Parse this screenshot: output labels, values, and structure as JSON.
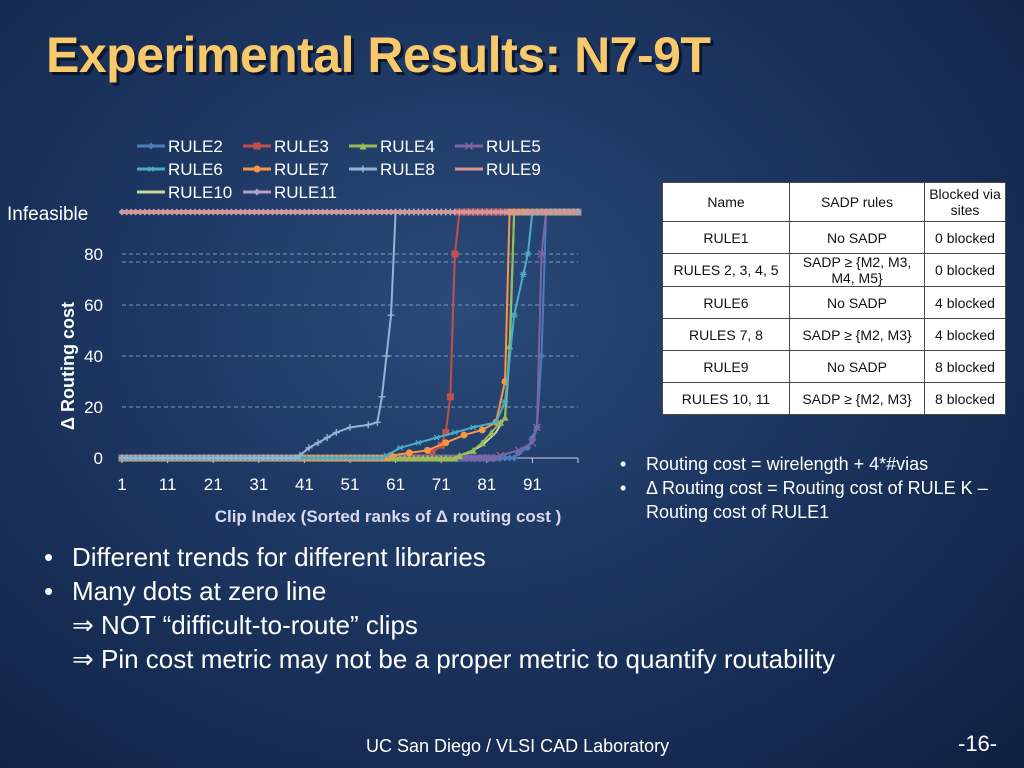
{
  "title": "Experimental Results: N7-9T",
  "chart_data": {
    "type": "line",
    "xlabel": "Clip Index (Sorted ranks of Δ routing cost )",
    "ylabel": "Δ Routing cost",
    "x_ticks": [
      "1",
      "11",
      "21",
      "31",
      "41",
      "51",
      "61",
      "71",
      "81",
      "91"
    ],
    "y_ticks": [
      "0",
      "20",
      "40",
      "60",
      "80"
    ],
    "infeasible_label": "Infeasible",
    "xlim": [
      1,
      101
    ],
    "ylim": [
      0,
      80
    ],
    "x_count": 101,
    "series": [
      {
        "name": "RULE2",
        "color": "#4a7ebb",
        "marker": "diamond",
        "jump_at": 94,
        "tail": [
          [
            88,
            2
          ],
          [
            90,
            4
          ],
          [
            91,
            8
          ],
          [
            92,
            12
          ],
          [
            93,
            40
          ]
        ]
      },
      {
        "name": "RULE3",
        "color": "#c0504d",
        "marker": "square",
        "jump_at": 75,
        "tail": [
          [
            69,
            2
          ],
          [
            71,
            5
          ],
          [
            72,
            10
          ],
          [
            73,
            24
          ],
          [
            74,
            80
          ]
        ]
      },
      {
        "name": "RULE4",
        "color": "#9bbb59",
        "marker": "triangle",
        "jump_at": 87,
        "tail": [
          [
            75,
            1
          ],
          [
            78,
            3
          ],
          [
            80,
            6
          ],
          [
            82,
            10
          ],
          [
            84,
            14
          ],
          [
            85,
            16
          ],
          [
            86,
            44
          ]
        ]
      },
      {
        "name": "RULE5",
        "color": "#8064a2",
        "marker": "x",
        "jump_at": 94,
        "tail": [
          [
            84,
            1
          ],
          [
            88,
            3
          ],
          [
            91,
            6
          ],
          [
            92,
            12
          ],
          [
            93,
            80
          ]
        ]
      },
      {
        "name": "RULE6",
        "color": "#4bacc6",
        "marker": "asterisk",
        "jump_at": 91,
        "tail": [
          [
            59,
            1
          ],
          [
            62,
            4
          ],
          [
            66,
            6
          ],
          [
            70,
            8
          ],
          [
            74,
            10
          ],
          [
            78,
            12
          ],
          [
            83,
            14
          ],
          [
            85,
            22
          ],
          [
            87,
            56
          ],
          [
            89,
            72
          ],
          [
            90,
            80
          ]
        ]
      },
      {
        "name": "RULE7",
        "color": "#f79646",
        "marker": "circle",
        "jump_at": 86,
        "tail": [
          [
            60,
            1
          ],
          [
            64,
            2
          ],
          [
            68,
            3
          ],
          [
            72,
            6
          ],
          [
            76,
            9
          ],
          [
            80,
            11
          ],
          [
            83,
            14
          ],
          [
            85,
            30
          ]
        ]
      },
      {
        "name": "RULE8",
        "color": "#95b3d7",
        "marker": "plus",
        "jump_at": 61,
        "tail": [
          [
            40,
            1
          ],
          [
            42,
            4
          ],
          [
            44,
            6
          ],
          [
            46,
            8
          ],
          [
            48,
            10
          ],
          [
            51,
            12
          ],
          [
            55,
            13
          ],
          [
            57,
            14
          ],
          [
            58,
            24
          ],
          [
            59,
            40
          ],
          [
            60,
            56
          ]
        ]
      },
      {
        "name": "RULE9",
        "color": "#d99694",
        "marker": "none",
        "jump_at": 1,
        "tail": []
      },
      {
        "name": "RULE10",
        "color": "#c3d69b",
        "marker": "none",
        "jump_at": 87,
        "tail": [
          [
            76,
            1
          ],
          [
            80,
            5
          ],
          [
            83,
            10
          ],
          [
            85,
            16
          ],
          [
            86,
            40
          ]
        ]
      },
      {
        "name": "RULE11",
        "color": "#b3a2c7",
        "marker": "diamond",
        "jump_at": 1,
        "tail": []
      }
    ]
  },
  "table": {
    "headers": [
      "Name",
      "SADP rules",
      "Blocked via sites"
    ],
    "rows": [
      [
        "RULE1",
        "No SADP",
        "0 blocked"
      ],
      [
        "RULES 2, 3, 4, 5",
        "SADP ≥ {M2, M3, M4, M5}",
        "0 blocked"
      ],
      [
        "RULE6",
        "No SADP",
        "4 blocked"
      ],
      [
        "RULES 7, 8",
        "SADP ≥ {M2, M3}",
        "4 blocked"
      ],
      [
        "RULE9",
        "No SADP",
        "8 blocked"
      ],
      [
        "RULES 10, 11",
        "SADP ≥ {M2, M3}",
        "8 blocked"
      ]
    ]
  },
  "notes": [
    "Routing cost = wirelength + 4*#vias",
    "Δ Routing cost = Routing cost of RULE K – Routing cost of RULE1"
  ],
  "bullets": [
    "Different trends for different libraries",
    "Many dots at zero line"
  ],
  "sub_bullets": [
    "⇒ NOT “difficult-to-route” clips",
    "⇒ Pin cost metric may not be a proper metric to quantify routability"
  ],
  "footer": "UC San Diego / VLSI CAD Laboratory",
  "page_number": "-16-",
  "bullet_glyph": "•"
}
